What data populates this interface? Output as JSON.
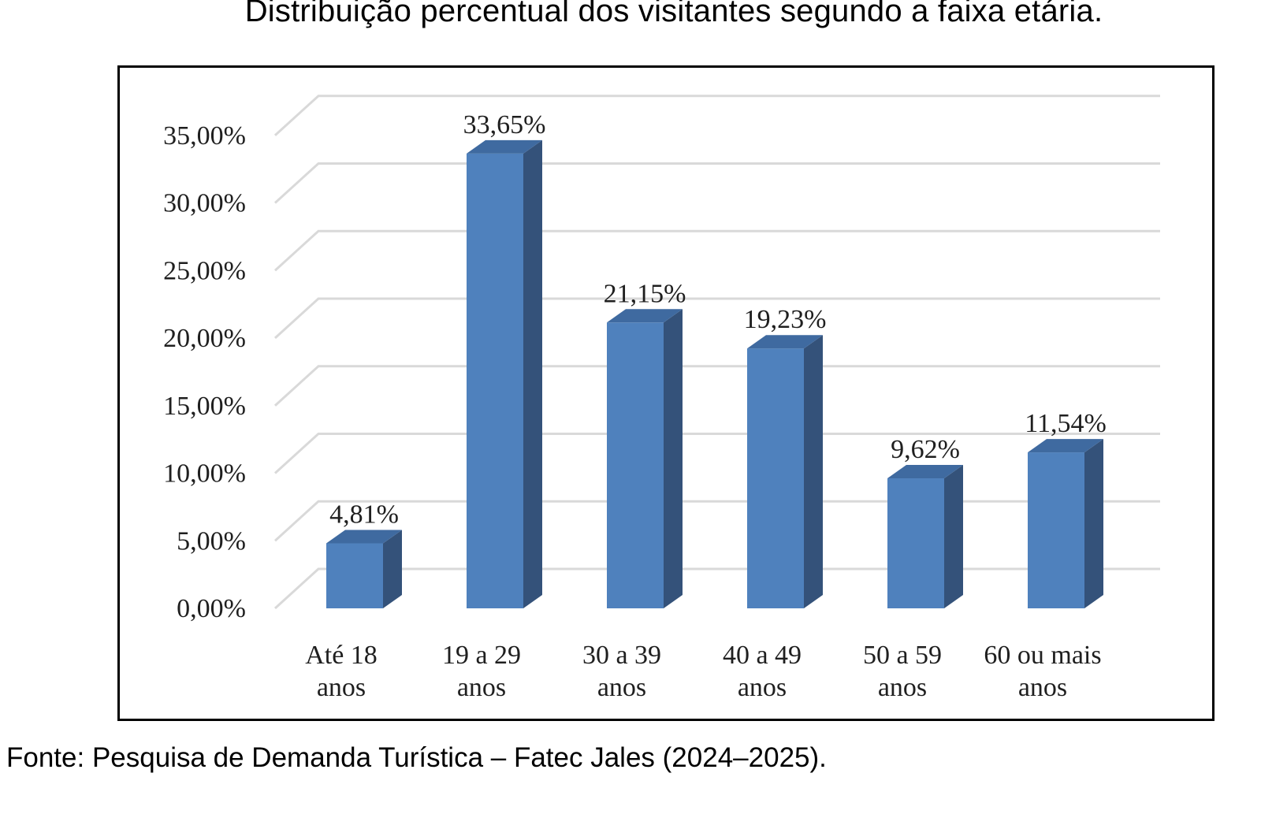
{
  "title": "Distribuição percentual dos visitantes segundo a faixa etária.",
  "source": "Fonte: Pesquisa de Demanda Turística – Fatec Jales (2024–2025).",
  "chart_data": {
    "type": "bar",
    "style": "3d-column",
    "categories": [
      "Até 18 anos",
      "19 a 29 anos",
      "30 a 39 anos",
      "40 a 49 anos",
      "50 a 59 anos",
      "60 ou mais anos"
    ],
    "category_lines": [
      [
        "Até 18",
        "anos"
      ],
      [
        "19 a 29",
        "anos"
      ],
      [
        "30 a 39",
        "anos"
      ],
      [
        "40 a 49",
        "anos"
      ],
      [
        "50 a 59",
        "anos"
      ],
      [
        "60 ou mais",
        "anos"
      ]
    ],
    "values": [
      4.81,
      33.65,
      21.15,
      19.23,
      9.62,
      11.54
    ],
    "data_labels": [
      "4,81%",
      "33,65%",
      "21,15%",
      "19,23%",
      "9,62%",
      "11,54%"
    ],
    "y_ticks": [
      "0,00%",
      "5,00%",
      "10,00%",
      "15,00%",
      "20,00%",
      "25,00%",
      "30,00%",
      "35,00%"
    ],
    "ylim": [
      0,
      35
    ],
    "grid": true,
    "legend": "none",
    "colors": {
      "bar_front": "#4f81bd",
      "bar_side": "#34527a",
      "bar_top": "#3f6aa0",
      "grid": "#d9d9d9"
    }
  }
}
